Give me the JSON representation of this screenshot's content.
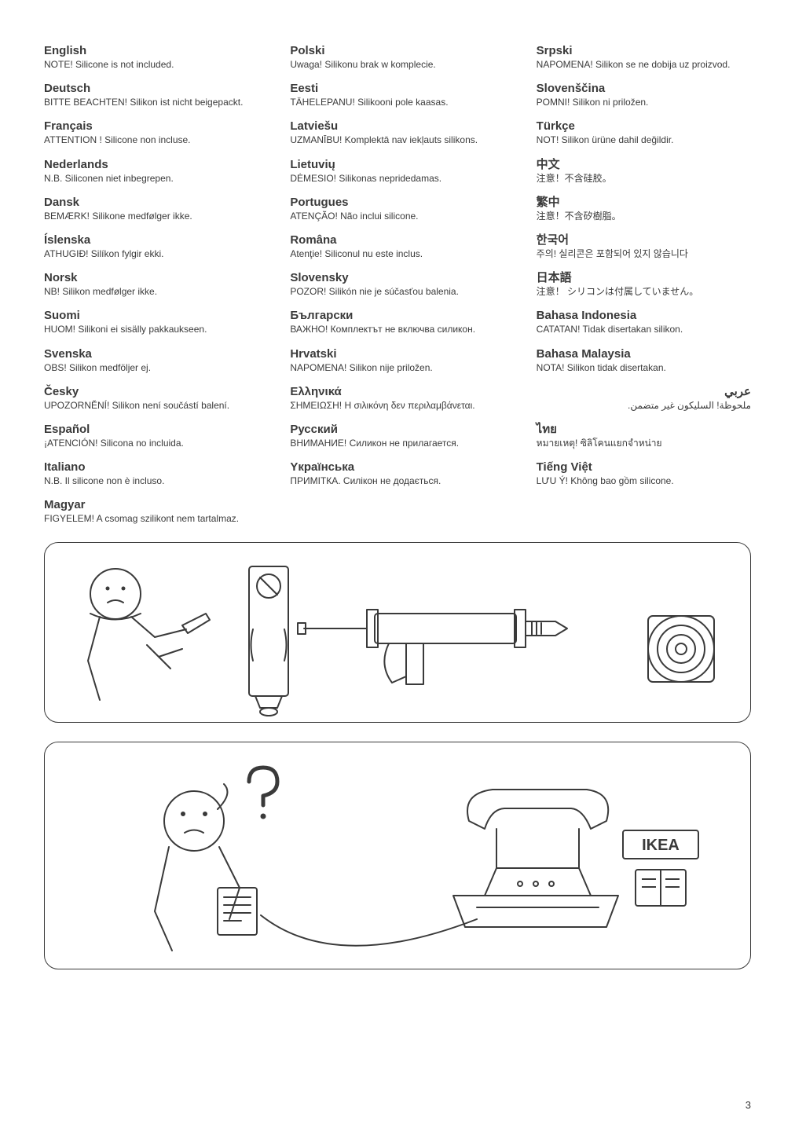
{
  "pageNumber": "3",
  "columns": [
    [
      {
        "title": "English",
        "text": "NOTE! Silicone is not included."
      },
      {
        "title": "Deutsch",
        "text": "BITTE BEACHTEN! Silikon ist nicht beigepackt."
      },
      {
        "title": "Français",
        "text": "ATTENTION ! Silicone non incluse."
      },
      {
        "title": "Nederlands",
        "text": "N.B. Siliconen niet inbegrepen."
      },
      {
        "title": "Dansk",
        "text": "BEMÆRK! Silikone medfølger ikke."
      },
      {
        "title": "Íslenska",
        "text": "ATHUGIÐ! Silíkon fylgir ekki."
      },
      {
        "title": "Norsk",
        "text": "NB! Silikon medfølger ikke."
      },
      {
        "title": "Suomi",
        "text": "HUOM! Silikoni ei sisälly pakkaukseen."
      },
      {
        "title": "Svenska",
        "text": "OBS! Silikon medföljer ej."
      },
      {
        "title": "Česky",
        "text": "UPOZORNĚNÍ! Silikon není součástí balení."
      },
      {
        "title": "Español",
        "text": "¡ATENCIÓN! Silicona no incluida."
      },
      {
        "title": "Italiano",
        "text": "N.B. Il silicone non è incluso."
      },
      {
        "title": "Magyar",
        "text": "FIGYELEM! A csomag szilikont nem tartalmaz."
      }
    ],
    [
      {
        "title": "Polski",
        "text": "Uwaga! Silikonu brak w komplecie."
      },
      {
        "title": "Eesti",
        "text": "TÄHELEPANU! Silikooni pole kaasas."
      },
      {
        "title": "Latviešu",
        "text": "UZMANĪBU! Komplektā nav iekļauts silikons."
      },
      {
        "title": "Lietuvių",
        "text": "DĖMESIO! Silikonas nepridedamas."
      },
      {
        "title": "Portugues",
        "text": "ATENÇÃO! Não inclui silicone."
      },
      {
        "title": "Româna",
        "text": "Atenţie! Siliconul nu este inclus."
      },
      {
        "title": "Slovensky",
        "text": "POZOR! Silikón nie je súčasťou balenia."
      },
      {
        "title": "Български",
        "text": "ВАЖНО! Комплектът не включва силикон."
      },
      {
        "title": "Hrvatski",
        "text": "NAPOMENA! Silikon nije priložen."
      },
      {
        "title": "Ελληνικά",
        "text": "ΣΗΜΕΙΩΣΗ! Η σιλικόνη δεν περιλαμβάνεται."
      },
      {
        "title": "Русский",
        "text": "ВНИМАНИЕ! Силикон не прилагается."
      },
      {
        "title": "Yкраїнська",
        "text": "ПРИМІТКА. Силікон не додається."
      }
    ],
    [
      {
        "title": "Srpski",
        "text": "NAPOMENA! Silikon se ne dobija uz proizvod."
      },
      {
        "title": "Slovenščina",
        "text": "POMNI! Silikon ni priložen."
      },
      {
        "title": "Türkçe",
        "text": "NOT! Silikon ürüne dahil değildir."
      },
      {
        "title": "中文",
        "text": "注意！不含硅胶。"
      },
      {
        "title": "繁中",
        "text": "注意！不含矽樹脂。"
      },
      {
        "title": "한국어",
        "text": "주의! 실리콘은 포함되어 있지 않습니다"
      },
      {
        "title": "日本語",
        "text": "注意！ シリコンは付属していません。"
      },
      {
        "title": "Bahasa Indonesia",
        "text": "CATATAN! Tidak disertakan silikon."
      },
      {
        "title": "Bahasa Malaysia",
        "text": "NOTA! Silikon tidak disertakan."
      },
      {
        "title": "عربي",
        "text": "ملحوظة! السليكون غير متضمن.",
        "rtl": true
      },
      {
        "title": "ไทย",
        "text": "หมายเหตุ! ซิลิโคนแยกจำหน่าย"
      },
      {
        "title": "Tiếng Việt",
        "text": "LƯU Ý! Không bao gồm silicone."
      }
    ]
  ],
  "ikeaLabel": "IKEA",
  "colors": {
    "text": "#3a3a3a",
    "border": "#3a3a3a",
    "background": "#ffffff"
  },
  "figure1": {
    "type": "illustration",
    "desc": "Person holding silicone tube with prohibition symbol, caulk gun, silicone cartridge"
  },
  "figure2": {
    "type": "illustration",
    "desc": "Confused person with question mark calling IKEA, phone with IKEA logo and instruction booklet"
  }
}
